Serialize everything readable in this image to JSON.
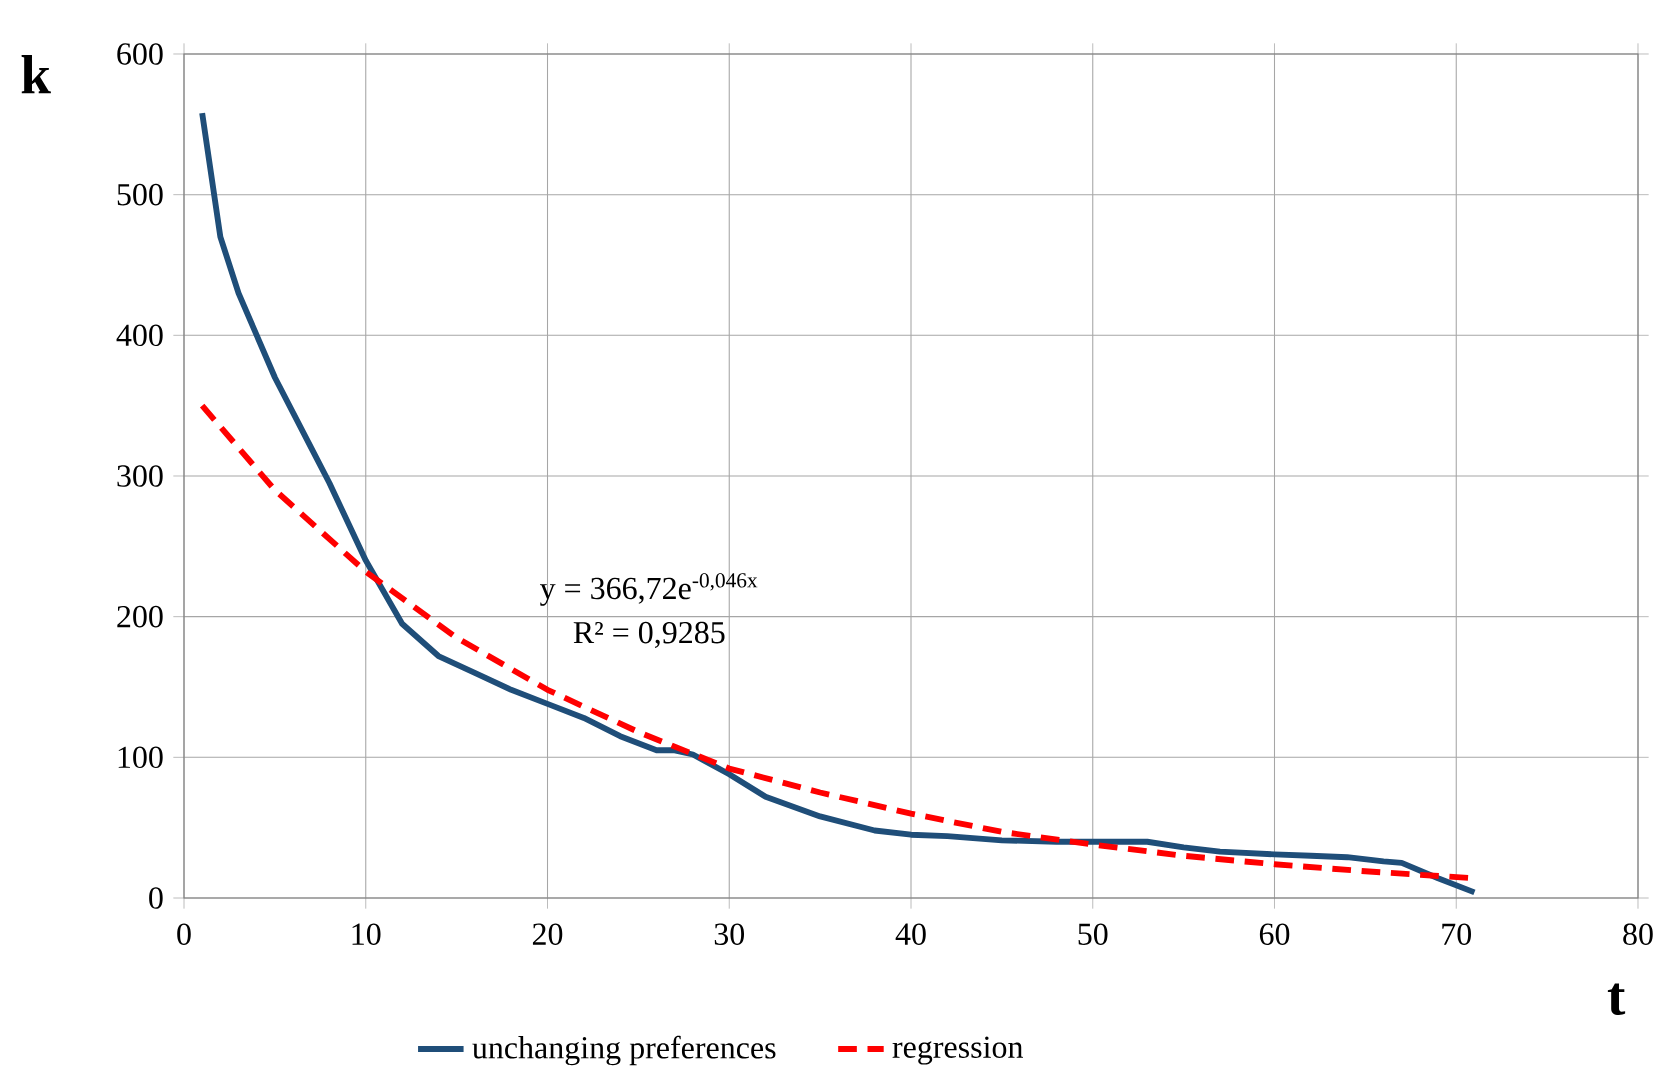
{
  "chart_data": {
    "type": "line",
    "xlabel": "t",
    "ylabel": "k",
    "xlim": [
      0,
      80
    ],
    "ylim": [
      0,
      600
    ],
    "xticks": [
      0,
      10,
      20,
      30,
      40,
      50,
      60,
      70,
      80
    ],
    "yticks": [
      0,
      100,
      200,
      300,
      400,
      500,
      600
    ],
    "grid": true,
    "legend": "bottom",
    "annotations": [
      "y = 366,72e$^{-0,046x}$",
      "R² = 0,9285"
    ],
    "series": [
      {
        "name": "unchanging preferences",
        "color": "#1f4e79",
        "line_style": "solid",
        "x": [
          1,
          2,
          3,
          5,
          7,
          8,
          10,
          12,
          14,
          16,
          18,
          20,
          22,
          24,
          26,
          27,
          28,
          30,
          32,
          35,
          38,
          40,
          42,
          45,
          48,
          50,
          53,
          55,
          57,
          60,
          62,
          64,
          66,
          67,
          69,
          71
        ],
        "values": [
          558,
          470,
          430,
          370,
          320,
          295,
          240,
          195,
          172,
          160,
          148,
          138,
          128,
          115,
          105,
          105,
          102,
          88,
          72,
          58,
          48,
          45,
          44,
          41,
          40,
          40,
          40,
          36,
          33,
          31,
          30,
          29,
          26,
          25,
          14,
          4
        ]
      },
      {
        "name": "regression",
        "color": "#ff0000",
        "line_style": "dashed",
        "x": [
          1,
          5,
          10,
          15,
          20,
          25,
          30,
          35,
          40,
          45,
          50,
          55,
          60,
          65,
          71
        ],
        "values": [
          350,
          290,
          232,
          185,
          148,
          118,
          92,
          75,
          60,
          47,
          38,
          30,
          24,
          19,
          14
        ]
      }
    ]
  }
}
